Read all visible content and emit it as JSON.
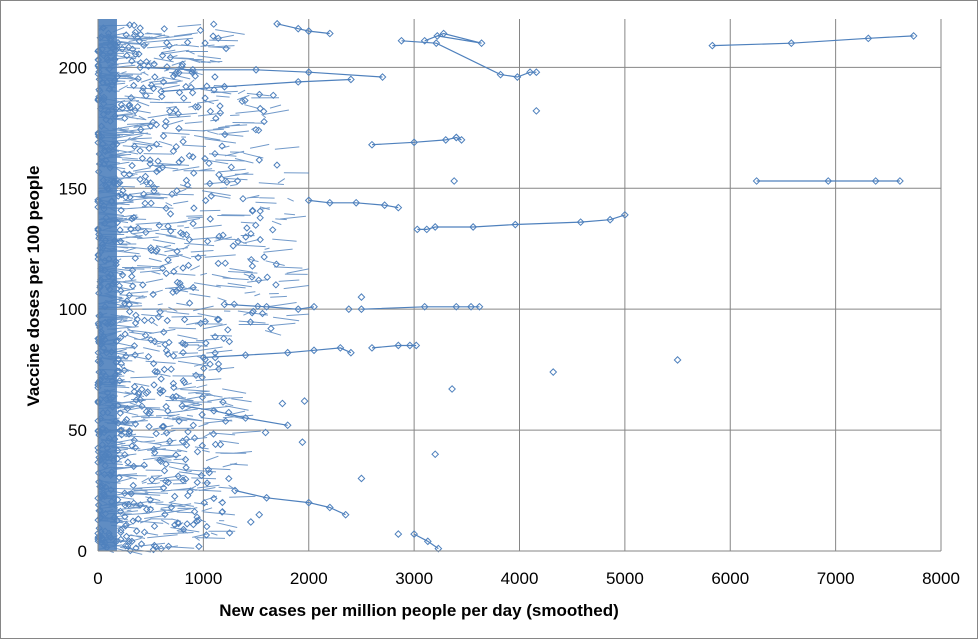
{
  "chart_data": {
    "type": "scatter",
    "title": "",
    "xlabel": "New cases per million people per day (smoothed)",
    "ylabel": "Vaccine doses per 100 people",
    "xlim": [
      0,
      8000
    ],
    "ylim": [
      0,
      220
    ],
    "xticks": [
      0,
      1000,
      2000,
      3000,
      4000,
      5000,
      6000,
      7000,
      8000
    ],
    "yticks": [
      0,
      50,
      100,
      150,
      200
    ],
    "xtick_labels": [
      "0",
      "1000",
      "2000",
      "3000",
      "4000",
      "5000",
      "6000",
      "7000",
      "8000"
    ],
    "ytick_labels": [
      "0",
      "50",
      "100",
      "150",
      "200"
    ],
    "grid": true,
    "legend": "none",
    "marker": "diamond-open",
    "series_color": "#4f81bd",
    "series": [
      {
        "x": [
          5830,
          6580,
          7310,
          7740
        ],
        "y": [
          209,
          210,
          212,
          213
        ]
      },
      {
        "x": [
          6250,
          6930,
          7380,
          7610
        ],
        "y": [
          153,
          153,
          153,
          153
        ]
      },
      {
        "x": [
          3030,
          3120,
          3200,
          3560,
          3960,
          4580,
          4860,
          5000
        ],
        "y": [
          133,
          133,
          134,
          134,
          135,
          136,
          137,
          139
        ]
      },
      {
        "x": [
          3220,
          3640,
          3280,
          3100
        ],
        "y": [
          213,
          210,
          214,
          211
        ]
      },
      {
        "x": [
          2500,
          3100,
          3400,
          3540,
          3620
        ],
        "y": [
          100,
          101,
          101,
          101,
          101
        ]
      },
      {
        "x": [
          2600,
          2850,
          2960,
          3020
        ],
        "y": [
          84,
          85,
          85,
          85
        ]
      },
      {
        "x": [
          3000,
          3130,
          3230
        ],
        "y": [
          7,
          4,
          1
        ]
      },
      {
        "x": [
          2880,
          3210,
          3820,
          3980,
          4100,
          4160
        ],
        "y": [
          211,
          210,
          197,
          196,
          198,
          198
        ]
      },
      {
        "x": [
          2600,
          3000,
          3300,
          3400,
          3450
        ],
        "y": [
          168,
          169,
          170,
          171,
          170
        ]
      },
      {
        "x": [
          1000,
          1400,
          1800,
          2050,
          2300,
          2400
        ],
        "y": [
          80,
          81,
          82,
          83,
          84,
          82
        ]
      },
      {
        "x": [
          1200,
          1600,
          1900,
          2050
        ],
        "y": [
          102,
          101,
          100,
          101
        ]
      },
      {
        "x": [
          1300,
          1600,
          2000,
          2200,
          2350
        ],
        "y": [
          25,
          22,
          20,
          18,
          15
        ]
      },
      {
        "x": [
          2000,
          2200,
          2450,
          2720,
          2850
        ],
        "y": [
          145,
          144,
          144,
          143,
          142
        ]
      },
      {
        "x": [
          600,
          1200,
          1900,
          2400
        ],
        "y": [
          190,
          192,
          194,
          195
        ]
      },
      {
        "x": [
          400,
          900,
          1500,
          2000,
          2700
        ],
        "y": [
          200,
          199,
          199,
          198,
          196
        ]
      },
      {
        "x": [
          1700,
          1900,
          2000,
          2200
        ],
        "y": [
          218,
          216,
          215,
          214
        ]
      },
      {
        "x": [
          800,
          1100,
          1400,
          1800
        ],
        "y": [
          60,
          58,
          55,
          52
        ]
      }
    ],
    "scatter_points": {
      "x": [
        4160,
        3380,
        3400,
        2380,
        2500,
        4320,
        5500,
        3360,
        1940,
        1960,
        1750,
        1590,
        1450,
        1530,
        2850,
        2500,
        3200
      ],
      "y": [
        182,
        153,
        171,
        100,
        105,
        74,
        79,
        67,
        45,
        62,
        61,
        49,
        12,
        15,
        7,
        30,
        40
      ]
    }
  }
}
